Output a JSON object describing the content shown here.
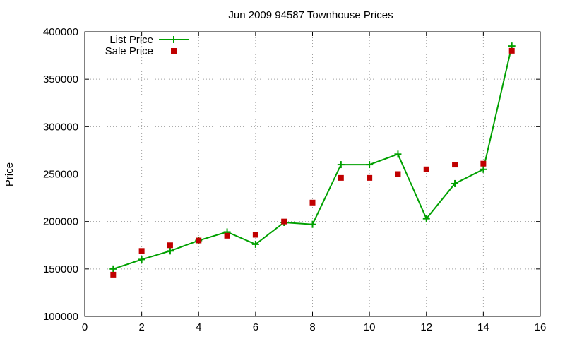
{
  "chart_data": {
    "type": "line",
    "title": "Jun 2009 94587 Townhouse Prices",
    "xlabel": "",
    "ylabel": "Price",
    "xlim": [
      0,
      16
    ],
    "ylim": [
      100000,
      400000
    ],
    "x_ticks": [
      0,
      2,
      4,
      6,
      8,
      10,
      12,
      14,
      16
    ],
    "y_ticks": [
      100000,
      150000,
      200000,
      250000,
      300000,
      350000,
      400000
    ],
    "grid": true,
    "legend_position": "top-left",
    "series": [
      {
        "name": "List Price",
        "style": "line-with-plus-markers",
        "color": "#00a000",
        "x": [
          1,
          2,
          3,
          4,
          5,
          6,
          7,
          8,
          9,
          10,
          11,
          12,
          13,
          14,
          15
        ],
        "values": [
          150000,
          160000,
          169000,
          180000,
          189000,
          176000,
          199000,
          197000,
          260000,
          260000,
          271000,
          203000,
          240000,
          255000,
          385000
        ]
      },
      {
        "name": "Sale Price",
        "style": "square-markers",
        "color": "#c00000",
        "x": [
          1,
          2,
          3,
          4,
          5,
          6,
          7,
          8,
          9,
          10,
          11,
          12,
          13,
          14,
          15
        ],
        "values": [
          144000,
          169000,
          175000,
          180000,
          185000,
          186000,
          200000,
          220000,
          246000,
          246000,
          250000,
          255000,
          260000,
          261000,
          380000
        ]
      }
    ]
  }
}
